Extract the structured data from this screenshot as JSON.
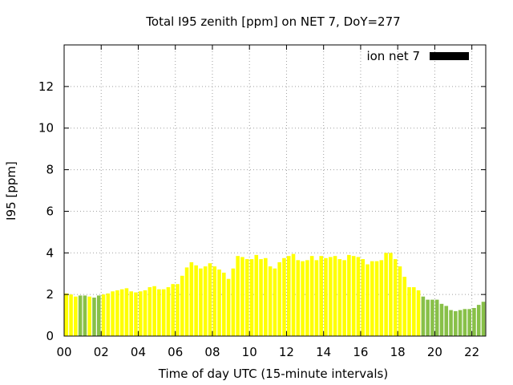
{
  "chart_data": {
    "type": "bar",
    "title": "Total I95 zenith [ppm] on NET 7, DoY=277",
    "xlabel": "Time of day UTC (15-minute intervals)",
    "ylabel": "I95 [ppm]",
    "ylim": [
      0,
      14
    ],
    "y_ticks": [
      0,
      2,
      4,
      6,
      8,
      10,
      12
    ],
    "y_tick_labels": [
      "0",
      "2",
      "4",
      "6",
      "8",
      "10",
      "12"
    ],
    "xlim": [
      0,
      22.75
    ],
    "x_ticks": [
      0,
      2,
      4,
      6,
      8,
      10,
      12,
      14,
      16,
      18,
      20,
      22
    ],
    "x_tick_labels": [
      "00",
      "02",
      "04",
      "06",
      "08",
      "10",
      "12",
      "14",
      "16",
      "18",
      "20",
      "22"
    ],
    "grid": true,
    "legend": {
      "label": "ion net 7",
      "color": "#000000",
      "placement": "top-right"
    },
    "colors": {
      "yellow": "#ffff00",
      "green": "#88c048"
    },
    "x_step_hours": 0.25,
    "values": [
      2.05,
      2.0,
      1.9,
      1.95,
      1.95,
      1.9,
      1.85,
      1.95,
      2.0,
      2.05,
      2.15,
      2.2,
      2.25,
      2.3,
      2.15,
      2.1,
      2.15,
      2.2,
      2.35,
      2.4,
      2.25,
      2.25,
      2.35,
      2.5,
      2.5,
      2.9,
      3.3,
      3.55,
      3.4,
      3.25,
      3.35,
      3.5,
      3.35,
      3.2,
      3.05,
      2.75,
      3.25,
      3.85,
      3.8,
      3.7,
      3.7,
      3.9,
      3.7,
      3.75,
      3.35,
      3.25,
      3.55,
      3.75,
      3.85,
      3.95,
      3.65,
      3.6,
      3.65,
      3.85,
      3.65,
      3.85,
      3.75,
      3.8,
      3.85,
      3.7,
      3.65,
      3.9,
      3.85,
      3.8,
      3.7,
      3.45,
      3.6,
      3.6,
      3.65,
      4.0,
      4.0,
      3.7,
      3.35,
      2.85,
      2.35,
      2.35,
      2.2,
      1.9,
      1.75,
      1.75,
      1.75,
      1.55,
      1.45,
      1.25,
      1.2,
      1.25,
      1.3,
      1.3,
      1.35,
      1.5,
      1.65,
      1.75,
      1.65
    ],
    "bar_colors": [
      "yellow",
      "yellow",
      "yellow",
      "green",
      "green",
      "yellow",
      "green",
      "green",
      "yellow",
      "yellow",
      "yellow",
      "yellow",
      "yellow",
      "yellow",
      "yellow",
      "yellow",
      "yellow",
      "yellow",
      "yellow",
      "yellow",
      "yellow",
      "yellow",
      "yellow",
      "yellow",
      "yellow",
      "yellow",
      "yellow",
      "yellow",
      "yellow",
      "yellow",
      "yellow",
      "yellow",
      "yellow",
      "yellow",
      "yellow",
      "yellow",
      "yellow",
      "yellow",
      "yellow",
      "yellow",
      "yellow",
      "yellow",
      "yellow",
      "yellow",
      "yellow",
      "yellow",
      "yellow",
      "yellow",
      "yellow",
      "yellow",
      "yellow",
      "yellow",
      "yellow",
      "yellow",
      "yellow",
      "yellow",
      "yellow",
      "yellow",
      "yellow",
      "yellow",
      "yellow",
      "yellow",
      "yellow",
      "yellow",
      "yellow",
      "yellow",
      "yellow",
      "yellow",
      "yellow",
      "yellow",
      "yellow",
      "yellow",
      "yellow",
      "yellow",
      "yellow",
      "yellow",
      "yellow",
      "green",
      "green",
      "green",
      "green",
      "green",
      "green",
      "green",
      "green",
      "green",
      "green",
      "green",
      "green",
      "green",
      "green",
      "green",
      "green"
    ]
  }
}
